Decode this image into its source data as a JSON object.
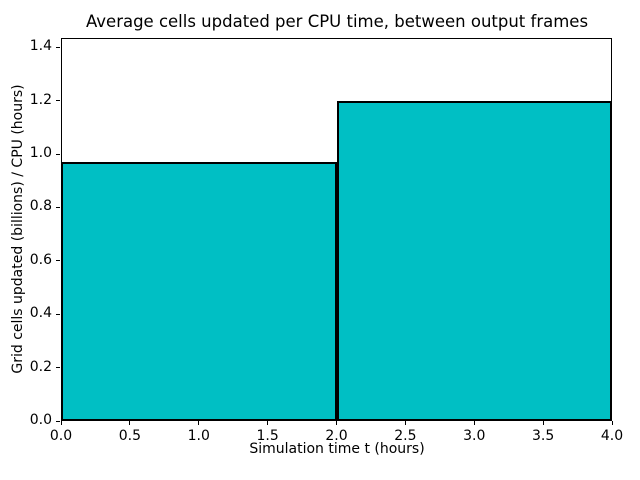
{
  "chart_data": {
    "type": "bar",
    "style": "step-histogram",
    "title": "Average cells updated per CPU time, between output frames",
    "xlabel": "Simulation time t (hours)",
    "ylabel": "Grid cells updated (billions) / CPU (hours)",
    "bars": [
      {
        "x_start": 0.0,
        "x_end": 2.0,
        "value": 0.97
      },
      {
        "x_start": 2.0,
        "x_end": 4.0,
        "value": 1.2
      }
    ],
    "xlim": [
      0.0,
      4.0
    ],
    "ylim": [
      0.0,
      1.435
    ],
    "x_ticks": [
      0.0,
      0.5,
      1.0,
      1.5,
      2.0,
      2.5,
      3.0,
      3.5,
      4.0
    ],
    "x_tick_labels": [
      "0.0",
      "0.5",
      "1.0",
      "1.5",
      "2.0",
      "2.5",
      "3.0",
      "3.5",
      "4.0"
    ],
    "y_ticks": [
      0.0,
      0.2,
      0.4,
      0.6,
      0.8,
      1.0,
      1.2,
      1.4
    ],
    "y_tick_labels": [
      "0.0",
      "0.2",
      "0.4",
      "0.6",
      "0.8",
      "1.0",
      "1.2",
      "1.4"
    ],
    "grid": false,
    "legend": null,
    "colors": {
      "bar_fill": "#00bfc4",
      "bar_edge": "#000000",
      "spine": "#000000",
      "background": "#ffffff",
      "text": "#000000"
    }
  }
}
